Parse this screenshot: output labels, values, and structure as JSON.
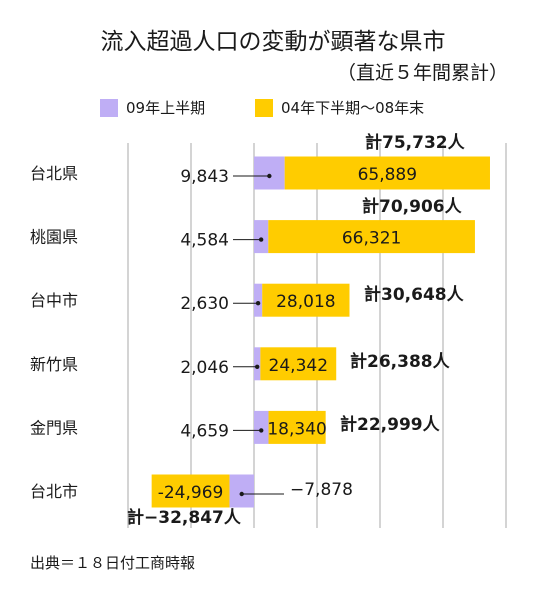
{
  "title": "流入超過人口の変動が顕著な県市",
  "subtitle": "（直近５年間累計）",
  "legend": {
    "series1": "09年上半期",
    "series2": "04年下半期〜08年末"
  },
  "colors": {
    "series1": "#bfaef5",
    "series2": "#ffcc00",
    "grid": "#aaaaaa"
  },
  "source": "出典＝１８日付工商時報",
  "chart_data": {
    "type": "bar",
    "orientation": "horizontal",
    "stacked": true,
    "categories": [
      "台北県",
      "桃園県",
      "台中市",
      "新竹県",
      "金門県",
      "台北市"
    ],
    "series": [
      {
        "name": "09年上半期",
        "values": [
          9843,
          4584,
          2630,
          2046,
          4659,
          -7878
        ],
        "labels": [
          "9,843",
          "4,584",
          "2,630",
          "2,046",
          "4,659",
          "−7,878"
        ]
      },
      {
        "name": "04年下半期〜08年末",
        "values": [
          65889,
          66321,
          28018,
          24342,
          18340,
          -24969
        ],
        "labels": [
          "65,889",
          "66,321",
          "28,018",
          "24,342",
          "18,340",
          "-24,969"
        ]
      }
    ],
    "totals": [
      "計75,732人",
      "計70,906人",
      "計30,648人",
      "計26,388人",
      "計22,999人",
      "計−32,847人"
    ],
    "xlim": [
      -35000,
      77000
    ],
    "grid": true
  }
}
